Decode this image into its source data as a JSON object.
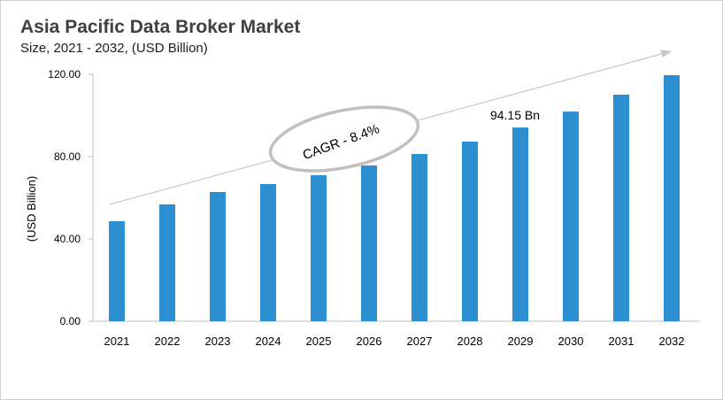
{
  "chart_data": {
    "type": "bar",
    "title": "Asia Pacific Data Broker Market",
    "subtitle": "Size, 2021 - 2032, (USD Billion)",
    "xlabel": "",
    "ylabel": "(USD Billion)",
    "categories": [
      "2021",
      "2022",
      "2023",
      "2024",
      "2025",
      "2026",
      "2027",
      "2028",
      "2029",
      "2030",
      "2031",
      "2032"
    ],
    "values": [
      48.6,
      56.8,
      62.8,
      66.7,
      71.0,
      75.7,
      81.3,
      87.3,
      94.15,
      101.9,
      110.1,
      119.6
    ],
    "ylim": [
      0,
      120
    ],
    "yticks": [
      "0.00",
      "40.00",
      "80.00",
      "120.00"
    ],
    "grid": false,
    "bar_color": "#2b8fd0",
    "annotations": {
      "cagr": "CAGR - 8.4%",
      "data_label": "94.15 Bn",
      "data_label_category": "2029"
    }
  }
}
